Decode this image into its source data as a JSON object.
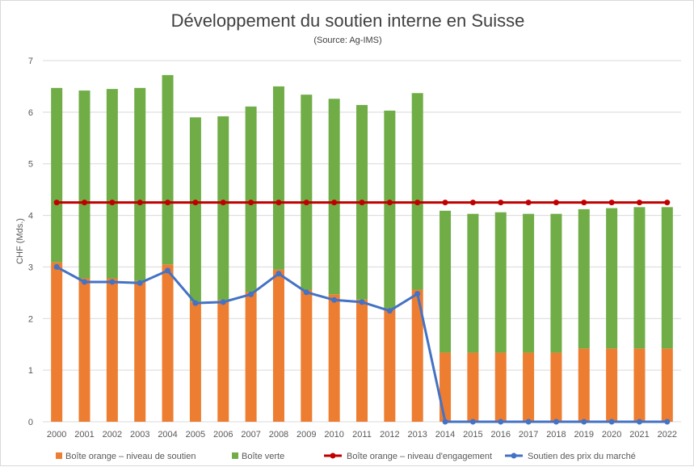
{
  "chart_data": {
    "type": "bar",
    "title": "Développement du soutien interne en Suisse",
    "subtitle": "(Source: Ag-IMS)",
    "ylabel": "CHF (Mds.)",
    "xlabel": "",
    "ylim": [
      0,
      7
    ],
    "yticks": [
      "0",
      "1",
      "2",
      "3",
      "4",
      "5",
      "6",
      "7"
    ],
    "grid": true,
    "legend_position": "bottom",
    "categories": [
      "2000",
      "2001",
      "2002",
      "2003",
      "2004",
      "2005",
      "2006",
      "2007",
      "2008",
      "2009",
      "2010",
      "2011",
      "2012",
      "2013",
      "2014",
      "2015",
      "2016",
      "2017",
      "2018",
      "2019",
      "2020",
      "2021",
      "2022"
    ],
    "series": [
      {
        "name": "Boîte orange – niveau de soutien",
        "type": "bar",
        "stack": true,
        "color": "#ed7d31",
        "values": [
          3.09,
          2.78,
          2.78,
          2.73,
          3.05,
          2.33,
          2.36,
          2.52,
          2.95,
          2.56,
          2.47,
          2.37,
          2.2,
          2.56,
          1.34,
          1.34,
          1.34,
          1.34,
          1.34,
          1.42,
          1.42,
          1.42,
          1.42
        ]
      },
      {
        "name": "Boîte verte",
        "type": "bar",
        "stack": true,
        "color": "#70ad47",
        "values": [
          3.38,
          3.64,
          3.67,
          3.74,
          3.67,
          3.57,
          3.56,
          3.59,
          3.55,
          3.78,
          3.79,
          3.77,
          3.83,
          3.81,
          2.75,
          2.69,
          2.72,
          2.69,
          2.69,
          2.7,
          2.72,
          2.74,
          2.74
        ]
      },
      {
        "name": "Boîte orange – niveau d'engagement",
        "type": "line",
        "color": "#c00000",
        "values": [
          4.25,
          4.25,
          4.25,
          4.25,
          4.25,
          4.25,
          4.25,
          4.25,
          4.25,
          4.25,
          4.25,
          4.25,
          4.25,
          4.25,
          4.25,
          4.25,
          4.25,
          4.25,
          4.25,
          4.25,
          4.25,
          4.25,
          4.25
        ]
      },
      {
        "name": "Soutien des prix du marché",
        "type": "line",
        "color": "#4472c4",
        "values": [
          3.0,
          2.71,
          2.71,
          2.69,
          2.93,
          2.3,
          2.32,
          2.47,
          2.87,
          2.51,
          2.36,
          2.32,
          2.15,
          2.48,
          0,
          0,
          0,
          0,
          0,
          0,
          0,
          0,
          0
        ]
      }
    ]
  }
}
